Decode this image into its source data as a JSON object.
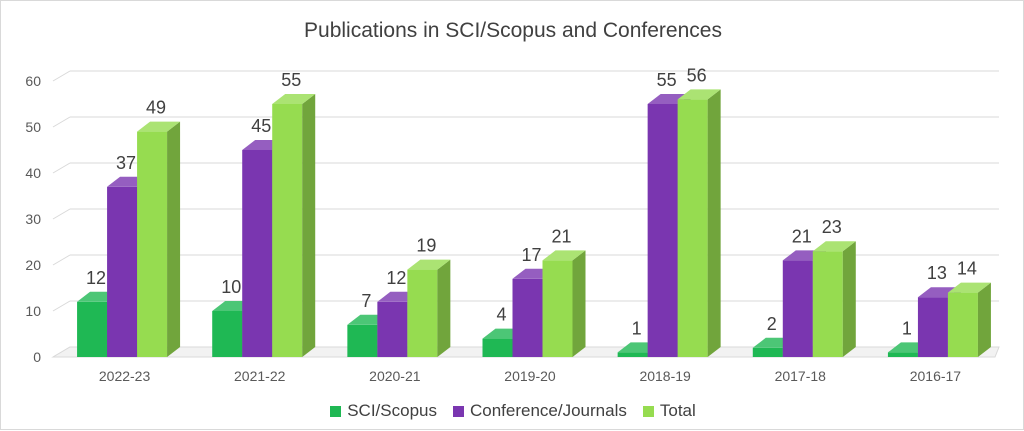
{
  "chart_data": {
    "type": "bar",
    "title": "Publications in SCI/Scopus and Conferences",
    "xlabel": "",
    "ylabel": "",
    "categories": [
      "2022-23",
      "2021-22",
      "2020-21",
      "2019-20",
      "2018-19",
      "2017-18",
      "2016-17"
    ],
    "ylim": [
      0,
      60
    ],
    "yticks": [
      0,
      10,
      20,
      30,
      40,
      50,
      60
    ],
    "grid": true,
    "legend_position": "bottom",
    "series": [
      {
        "name": "SCI/Scopus",
        "values": [
          12,
          10,
          7,
          4,
          1,
          2,
          1
        ],
        "color": "#1fb854"
      },
      {
        "name": "Conference/Journals",
        "values": [
          37,
          45,
          12,
          17,
          55,
          21,
          13
        ],
        "color": "#7a36b0"
      },
      {
        "name": "Total",
        "values": [
          49,
          55,
          19,
          21,
          56,
          23,
          14
        ],
        "color": "#96dc50"
      }
    ]
  }
}
